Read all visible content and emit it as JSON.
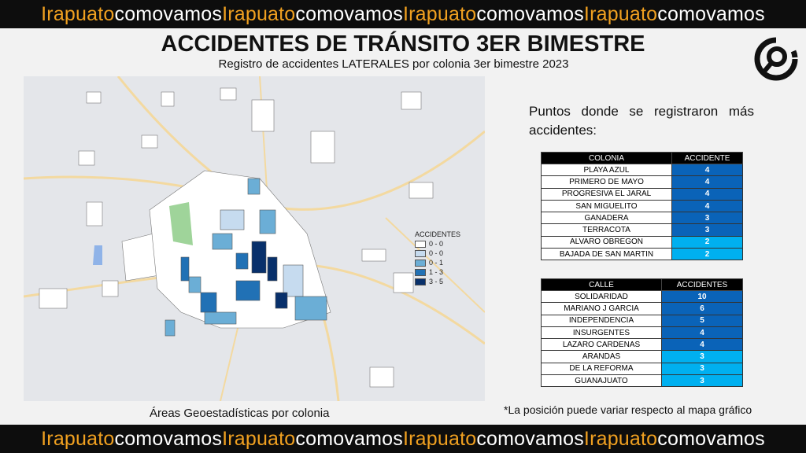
{
  "banner": {
    "brand_a": "Irapuato",
    "brand_b": "comovamos",
    "repeat": 4
  },
  "title": "ACCIDENTES DE TRÁNSITO 3ER BIMESTRE",
  "subtitle": "Registro de accidentes LATERALES por colonia 3er bimestre 2023",
  "logo": "magnifier-circle-logo",
  "map": {
    "legend_title": "ACCIDENTES",
    "legend": [
      {
        "label": "0 - 0",
        "color": "#ffffff"
      },
      {
        "label": "0 - 0",
        "color": "#c6dbef"
      },
      {
        "label": "0 - 1",
        "color": "#6baed6"
      },
      {
        "label": "1 - 3",
        "color": "#2171b5"
      },
      {
        "label": "3 - 5",
        "color": "#08306b"
      }
    ],
    "caption": "Áreas Geoestadísticas por colonia"
  },
  "puntos": "Puntos donde se registraron más accidentes:",
  "colonias": {
    "headers": [
      "COLONIA",
      "ACCIDENTE"
    ],
    "rows": [
      [
        "PLAYA AZUL",
        "4"
      ],
      [
        "PRIMERO DE MAYO",
        "4"
      ],
      [
        "PROGRESIVA EL JARAL",
        "4"
      ],
      [
        "SAN MIGUELITO",
        "4"
      ],
      [
        "GANADERA",
        "3"
      ],
      [
        "TERRACOTA",
        "3"
      ],
      [
        "ALVARO OBREGON",
        "2"
      ],
      [
        "BAJADA DE SAN MARTIN",
        "2"
      ]
    ]
  },
  "calles": {
    "headers": [
      "CALLE",
      "ACCIDENTES"
    ],
    "rows": [
      [
        "SOLIDARIDAD",
        "10"
      ],
      [
        "MARIANO J GARCIA",
        "6"
      ],
      [
        "INDEPENDENCIA",
        "5"
      ],
      [
        "INSURGENTES",
        "4"
      ],
      [
        "LAZARO CARDENAS",
        "4"
      ],
      [
        "ARANDAS",
        "3"
      ],
      [
        "DE LA REFORMA",
        "3"
      ],
      [
        "GUANAJUATO",
        "3"
      ]
    ]
  },
  "colors": {
    "dark_blue": "#0a63b8",
    "light_blue": "#00b0f0",
    "brand_orange": "#f0a020"
  },
  "note": "*La posición puede variar respecto al mapa gráfico"
}
